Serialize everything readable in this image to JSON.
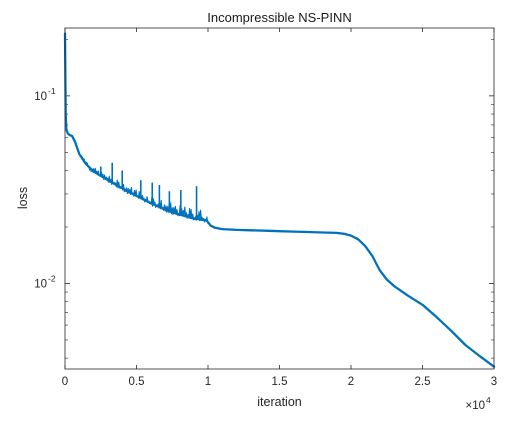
{
  "chart_data": {
    "type": "line",
    "title": "Incompressible NS-PINN",
    "xlabel": "iteration",
    "ylabel": "loss",
    "x_multiplier_label": "×10",
    "x_multiplier_exponent": "4",
    "x_scale": 10000,
    "xlim": [
      0,
      30000
    ],
    "ylim": [
      0.0035,
      0.23
    ],
    "yscale": "log",
    "grid": false,
    "x_ticks": [
      0,
      5000,
      10000,
      15000,
      20000,
      25000,
      30000
    ],
    "x_tick_labels": [
      "0",
      "0.5",
      "1",
      "1.5",
      "2",
      "2.5",
      "3"
    ],
    "y_ticks": [
      {
        "value": 0.1,
        "base": "10",
        "exp": "-1"
      },
      {
        "value": 0.01,
        "base": "10",
        "exp": "-2"
      }
    ],
    "series": [
      {
        "color": "#0072BD",
        "x": [
          0,
          50,
          100,
          200,
          300,
          500,
          700,
          1000,
          1500,
          2000,
          3000,
          4000,
          5000,
          6000,
          7000,
          8000,
          9000,
          9900,
          10000,
          10200,
          10500,
          11000,
          12000,
          13000,
          14000,
          15000,
          16000,
          17000,
          18000,
          19000,
          19500,
          20000,
          20500,
          21000,
          21500,
          22000,
          22500,
          23000,
          24000,
          25000,
          26000,
          27000,
          28000,
          29000,
          30000
        ],
        "y": [
          0.215,
          0.08,
          0.066,
          0.063,
          0.062,
          0.061,
          0.057,
          0.049,
          0.043,
          0.0395,
          0.0355,
          0.0322,
          0.0293,
          0.0268,
          0.0248,
          0.0233,
          0.0222,
          0.0217,
          0.0212,
          0.0203,
          0.0198,
          0.0195,
          0.0193,
          0.0192,
          0.0191,
          0.019,
          0.0189,
          0.0188,
          0.0187,
          0.0186,
          0.0184,
          0.018,
          0.0172,
          0.0158,
          0.014,
          0.0118,
          0.0105,
          0.0097,
          0.0086,
          0.0077,
          0.0066,
          0.0056,
          0.0047,
          0.0041,
          0.0036
        ]
      }
    ],
    "noise_band": {
      "x_range": [
        900,
        10000
      ],
      "spike_x": [
        1500,
        2500,
        3300,
        4000,
        5300,
        6100,
        6600,
        7300,
        8100,
        9200
      ],
      "spike_y": [
        0.0445,
        0.042,
        0.044,
        0.04,
        0.0355,
        0.0345,
        0.0335,
        0.031,
        0.0315,
        0.033
      ]
    }
  }
}
